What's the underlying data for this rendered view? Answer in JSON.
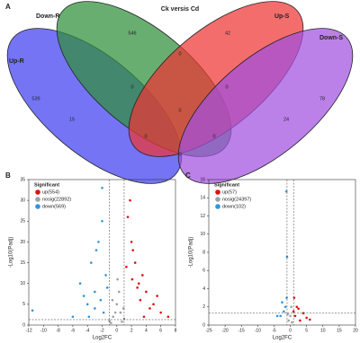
{
  "chart_data": [
    {
      "type": "venn",
      "panel_label": "A",
      "title": "Ck versis Cd",
      "sets": [
        {
          "name": "Up-R",
          "color": "#3f3ff0"
        },
        {
          "name": "Down-R",
          "color": "#2f8f3a"
        },
        {
          "name": "Up-S",
          "color": "#ee3535"
        },
        {
          "name": "Down-S",
          "color": "#a24fe0"
        }
      ],
      "values": [
        546,
        42,
        539,
        78,
        0,
        0,
        0,
        15,
        24,
        0,
        0,
        0,
        0
      ]
    },
    {
      "type": "scatter",
      "panel_label": "B",
      "xlabel": "Log2FC",
      "ylabel": "-Log10(Padj)",
      "legend_title": "Significant",
      "xlim": [
        -12,
        8
      ],
      "xticks": [
        -12,
        -10,
        -8,
        -6,
        -4,
        -2,
        0,
        2,
        4,
        6,
        8
      ],
      "ylim": [
        0,
        35
      ],
      "yticks": [
        0,
        5,
        10,
        15,
        20,
        25,
        30,
        35
      ],
      "thresholds": {
        "x": [
          -1,
          1
        ],
        "y": 1.3
      },
      "series": [
        {
          "name": "up(554)",
          "color": "#e01010",
          "x": [
            1.5,
            2,
            2.5,
            3,
            3.5,
            4,
            5,
            6,
            2.2,
            3.2,
            4.5,
            1.8,
            2.8,
            5.5,
            7,
            1.3,
            2.1,
            3.7
          ],
          "y": [
            26,
            20,
            15,
            10,
            12,
            8,
            5,
            3,
            18,
            6,
            4,
            30,
            9,
            7,
            2,
            14,
            11,
            2
          ]
        },
        {
          "name": "nosig(22892)",
          "color": "#a0a0a0",
          "x": [
            -1,
            -0.5,
            0,
            0.5,
            1,
            -0.8,
            0.3,
            0.7,
            -0.2,
            0.1,
            0.9,
            -0.6
          ],
          "y": [
            1,
            2,
            5,
            3,
            1.5,
            0.5,
            8,
            0.8,
            3,
            11,
            4,
            6
          ]
        },
        {
          "name": "down(569)",
          "color": "#2f95e0",
          "x": [
            -11.5,
            -5,
            -4,
            -3.5,
            -3,
            -2.5,
            -2,
            -1.5,
            -3,
            -2.2,
            -1.8,
            -4.5,
            -2.8,
            -6,
            -2,
            -1.3,
            -3.8
          ],
          "y": [
            3.5,
            10,
            5,
            15,
            8,
            20,
            25,
            12,
            4,
            6,
            3,
            7,
            18,
            2,
            33,
            9,
            2
          ]
        }
      ]
    },
    {
      "type": "scatter",
      "panel_label": "C",
      "xlabel": "Log2FC",
      "ylabel": "-Log10(Padj)",
      "legend_title": "Significant",
      "xlim": [
        -25,
        20
      ],
      "xticks": [
        -25,
        -20,
        -15,
        -10,
        -5,
        0,
        5,
        10,
        15,
        20
      ],
      "ylim": [
        0,
        16
      ],
      "yticks": [
        0,
        2,
        4,
        6,
        8,
        10,
        12,
        14,
        16
      ],
      "thresholds": {
        "x": [
          -1,
          1
        ],
        "y": 1.3
      },
      "series": [
        {
          "name": "up(57)",
          "color": "#e01010",
          "x": [
            1,
            1.5,
            2,
            3,
            4,
            5,
            1.2,
            2.5,
            6
          ],
          "y": [
            1.5,
            1,
            2,
            0.5,
            1.3,
            0.8,
            3,
            1.8,
            0.6
          ]
        },
        {
          "name": "nosig(24397)",
          "color": "#a0a0a0",
          "x": [
            -0.5,
            0,
            0.5,
            -0.8,
            0.3
          ],
          "y": [
            0.5,
            1,
            0.3,
            1.2,
            2
          ]
        },
        {
          "name": "down(102)",
          "color": "#2f95e0",
          "x": [
            -1.2,
            -1.5,
            -2,
            -3,
            -1.1,
            -2.5,
            -1,
            -4
          ],
          "y": [
            14.7,
            2,
            1.5,
            1,
            3,
            2.5,
            7.5,
            1
          ]
        }
      ]
    }
  ]
}
